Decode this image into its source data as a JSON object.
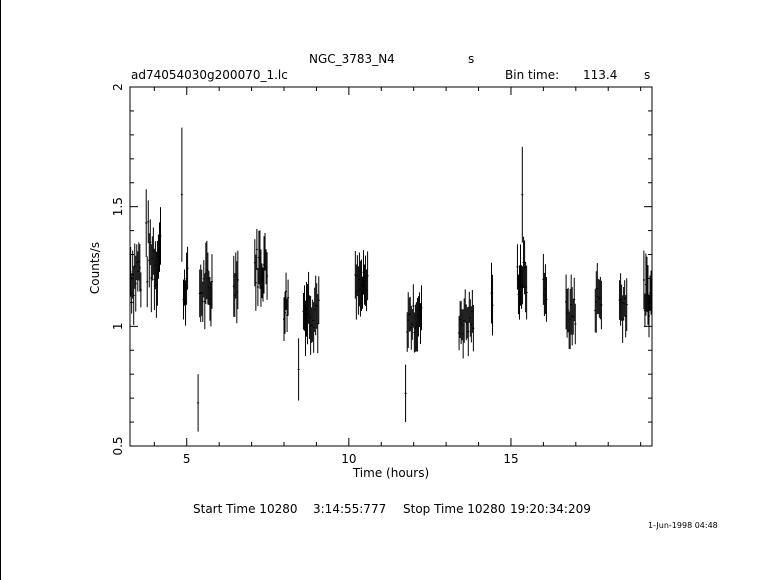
{
  "header": {
    "object_name": "NGC_3783_N4",
    "object_suffix": "s",
    "file_name": "ad74054030g200070_1.lc",
    "bin_time_label": "Bin time:",
    "bin_time_value": "113.4",
    "bin_time_unit": "s"
  },
  "footer": {
    "start_label": "Start Time 10280",
    "start_time": "3:14:55:777",
    "stop_label": "Stop Time 10280",
    "stop_time": "19:20:34:209",
    "date_stamp": "1-Jun-1998 04:48"
  },
  "chart_data": {
    "type": "scatter",
    "xlabel": "Time (hours)",
    "ylabel": "Counts/s",
    "xlim": [
      3.25,
      19.35
    ],
    "ylim": [
      0.5,
      2.0
    ],
    "xticks": [
      5,
      10,
      15
    ],
    "yticks": [
      0.5,
      1,
      1.5,
      2
    ],
    "ytick_labels": [
      "0.5",
      "1",
      "1.5",
      "2"
    ],
    "xtick_labels": [
      "5",
      "10",
      "15"
    ],
    "error_bars": true,
    "grid": false,
    "segments": [
      {
        "start": 3.27,
        "end": 3.6,
        "mean": 1.23,
        "amp": 0.12,
        "err": 0.1
      },
      {
        "start": 3.75,
        "end": 4.2,
        "mean": 1.3,
        "amp": 0.15,
        "err": 0.11
      },
      {
        "start": 4.9,
        "end": 5.05,
        "mean": 1.17,
        "amp": 0.08,
        "err": 0.1
      },
      {
        "start": 5.4,
        "end": 5.8,
        "mean": 1.15,
        "amp": 0.1,
        "err": 0.1
      },
      {
        "start": 6.45,
        "end": 6.6,
        "mean": 1.2,
        "amp": 0.07,
        "err": 0.1
      },
      {
        "start": 7.1,
        "end": 7.5,
        "mean": 1.25,
        "amp": 0.09,
        "err": 0.1
      },
      {
        "start": 8.0,
        "end": 8.15,
        "mean": 1.1,
        "amp": 0.08,
        "err": 0.1
      },
      {
        "start": 8.6,
        "end": 9.1,
        "mean": 1.08,
        "amp": 0.09,
        "err": 0.1
      },
      {
        "start": 10.2,
        "end": 10.6,
        "mean": 1.15,
        "amp": 0.08,
        "err": 0.09
      },
      {
        "start": 11.8,
        "end": 12.25,
        "mean": 1.03,
        "amp": 0.06,
        "err": 0.09
      },
      {
        "start": 13.4,
        "end": 13.85,
        "mean": 1.03,
        "amp": 0.07,
        "err": 0.09
      },
      {
        "start": 14.4,
        "end": 14.45,
        "mean": 1.1,
        "amp": 0.05,
        "err": 0.1
      },
      {
        "start": 15.2,
        "end": 15.5,
        "mean": 1.2,
        "amp": 0.08,
        "err": 0.1
      },
      {
        "start": 16.0,
        "end": 16.1,
        "mean": 1.15,
        "amp": 0.05,
        "err": 0.1
      },
      {
        "start": 16.7,
        "end": 17.0,
        "mean": 1.05,
        "amp": 0.08,
        "err": 0.1
      },
      {
        "start": 17.6,
        "end": 17.8,
        "mean": 1.12,
        "amp": 0.06,
        "err": 0.1
      },
      {
        "start": 18.35,
        "end": 18.6,
        "mean": 1.1,
        "amp": 0.07,
        "err": 0.1
      },
      {
        "start": 19.1,
        "end": 19.35,
        "mean": 1.12,
        "amp": 0.08,
        "err": 0.1
      }
    ],
    "spikes": [
      {
        "x": 4.85,
        "y": 1.55,
        "err": 0.28
      },
      {
        "x": 5.35,
        "y": 0.68,
        "err": 0.12
      },
      {
        "x": 11.75,
        "y": 0.72,
        "err": 0.12
      },
      {
        "x": 15.35,
        "y": 1.55,
        "err": 0.2
      },
      {
        "x": 8.45,
        "y": 0.82,
        "err": 0.13
      }
    ]
  }
}
